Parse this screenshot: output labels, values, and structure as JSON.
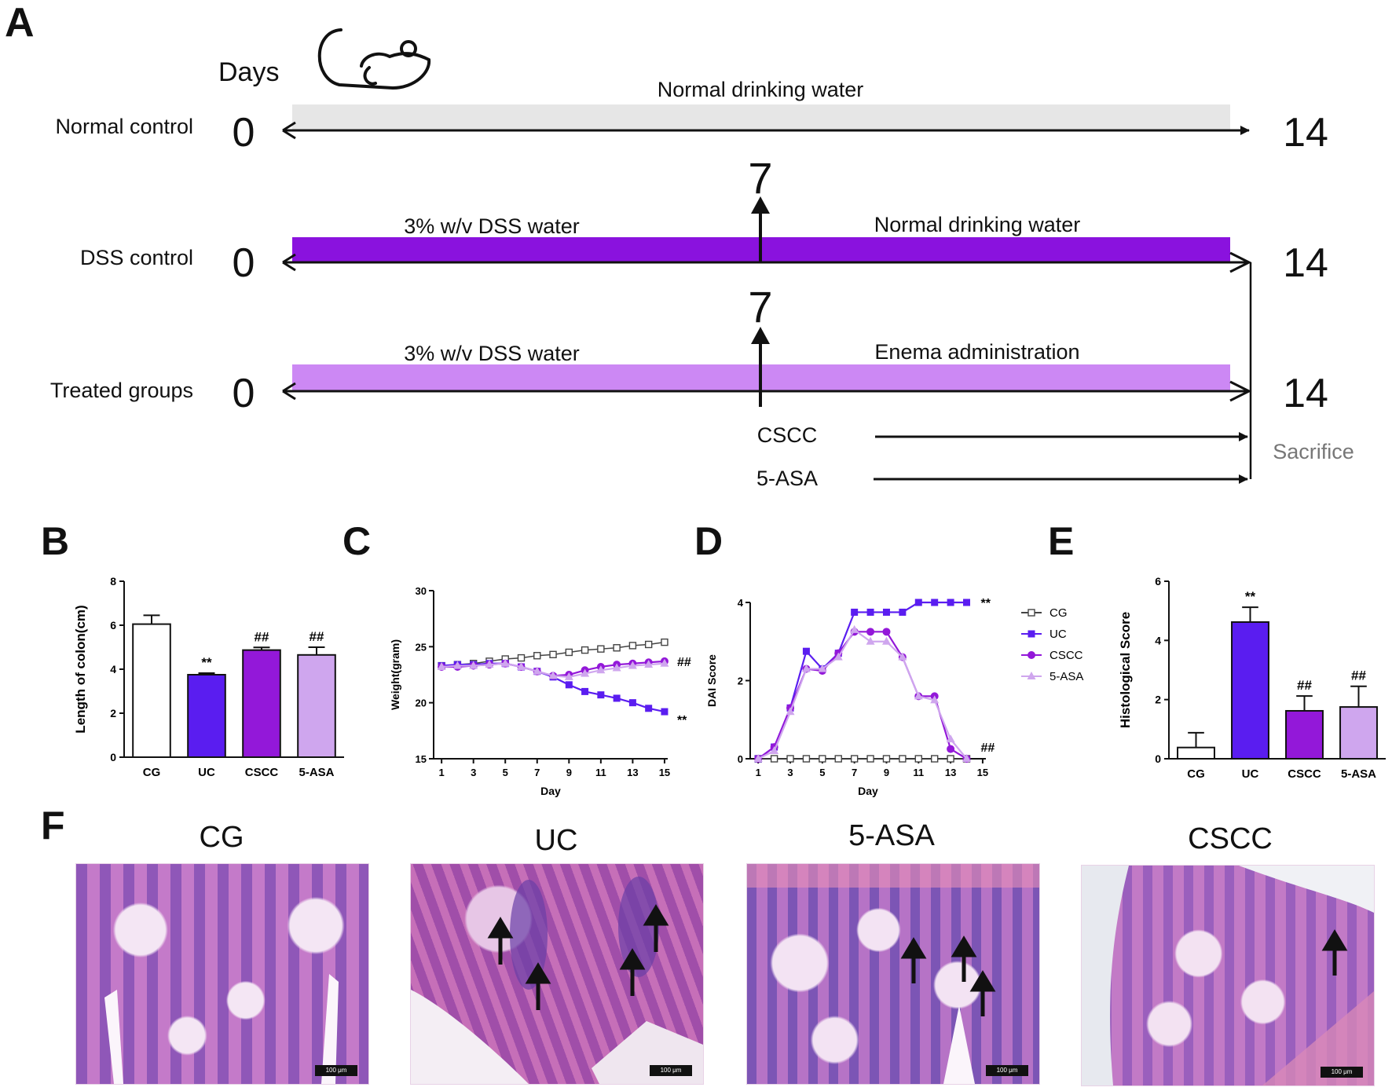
{
  "panel_letters": {
    "a": "A",
    "b": "B",
    "c": "C",
    "d": "D",
    "e": "E",
    "f": "F"
  },
  "colors": {
    "cg": "#444444",
    "uc": "#5a1df0",
    "cscc": "#9318d9",
    "asa": "#cfa6ee",
    "normal_bar": "#e6e6e6",
    "dss_bar": "#8a12de",
    "treated_bar": "#cc88f4",
    "tissue": "#b85fbd"
  },
  "timeline": {
    "days_label": "Days",
    "mouse_icon": "mouse-icon",
    "rows": [
      {
        "label": "Normal control",
        "start_day": "0",
        "end_day": "14",
        "segment_left": "Normal drinking water",
        "segment_right": "",
        "mid_day": ""
      },
      {
        "label": "DSS control",
        "start_day": "0",
        "end_day": "14",
        "segment_left": "3% w/v DSS water",
        "segment_right": "Normal drinking water",
        "mid_day": "7"
      },
      {
        "label": "Treated groups",
        "start_day": "0",
        "end_day": "14",
        "segment_left": "3% w/v DSS water",
        "segment_right": "Enema administration",
        "mid_day": "7"
      }
    ],
    "treatments": [
      "CSCC",
      "5-ASA"
    ],
    "endpoint": "Sacrifice"
  },
  "chart_data": [
    {
      "panel": "B",
      "type": "bar",
      "title": "",
      "xlabel": "",
      "ylabel": "Length of colon(cm)",
      "categories": [
        "CG",
        "UC",
        "CSCC",
        "5-ASA"
      ],
      "values": [
        6.05,
        3.75,
        4.87,
        4.65
      ],
      "errors": [
        0.4,
        0.07,
        0.12,
        0.35
      ],
      "annotations": [
        "",
        "**",
        "##",
        "##"
      ],
      "ylim": [
        0,
        8
      ],
      "yticks": [
        0,
        2,
        4,
        6,
        8
      ]
    },
    {
      "panel": "C",
      "type": "line",
      "title": "",
      "xlabel": "Day",
      "ylabel": "Weight(gram)",
      "x": [
        1,
        2,
        3,
        4,
        5,
        6,
        7,
        8,
        9,
        10,
        11,
        12,
        13,
        14,
        15
      ],
      "xticks": [
        1,
        3,
        5,
        7,
        9,
        11,
        13,
        15
      ],
      "ylim": [
        15,
        30
      ],
      "yticks": [
        15,
        20,
        25,
        30
      ],
      "series": [
        {
          "name": "CG",
          "values": [
            23.3,
            23.4,
            23.5,
            23.7,
            23.9,
            24.0,
            24.2,
            24.3,
            24.5,
            24.7,
            24.8,
            24.9,
            25.1,
            25.2,
            25.4
          ]
        },
        {
          "name": "UC",
          "values": [
            23.3,
            23.4,
            23.4,
            23.5,
            23.5,
            23.2,
            22.8,
            22.3,
            21.6,
            21.0,
            20.7,
            20.4,
            20.0,
            19.5,
            19.2
          ]
        },
        {
          "name": "CSCC",
          "values": [
            23.2,
            23.2,
            23.3,
            23.4,
            23.5,
            23.2,
            22.8,
            22.4,
            22.5,
            22.9,
            23.2,
            23.4,
            23.5,
            23.6,
            23.7
          ]
        },
        {
          "name": "5-ASA",
          "values": [
            23.2,
            23.3,
            23.3,
            23.4,
            23.5,
            23.2,
            22.8,
            22.4,
            22.3,
            22.6,
            22.9,
            23.1,
            23.3,
            23.4,
            23.5
          ]
        }
      ],
      "annotations": [
        {
          "text": "##",
          "series": "CSCC"
        },
        {
          "text": "**",
          "series": "UC"
        }
      ]
    },
    {
      "panel": "D",
      "type": "line",
      "title": "",
      "xlabel": "Day",
      "ylabel": "DAI Score",
      "x": [
        1,
        2,
        3,
        4,
        5,
        6,
        7,
        8,
        9,
        10,
        11,
        12,
        13,
        14
      ],
      "xticks": [
        1,
        3,
        5,
        7,
        9,
        11,
        13,
        15
      ],
      "ylim": [
        0,
        4
      ],
      "yticks": [
        0,
        2,
        4
      ],
      "series": [
        {
          "name": "CG",
          "values": [
            0,
            0,
            0,
            0,
            0,
            0,
            0,
            0,
            0,
            0,
            0,
            0,
            0,
            0
          ]
        },
        {
          "name": "UC",
          "values": [
            0,
            0.3,
            1.3,
            2.75,
            2.3,
            2.7,
            3.75,
            3.75,
            3.75,
            3.75,
            4,
            4,
            4,
            4
          ]
        },
        {
          "name": "CSCC",
          "values": [
            0,
            0.3,
            1.3,
            2.3,
            2.25,
            2.7,
            3.25,
            3.25,
            3.25,
            2.6,
            1.6,
            1.6,
            0.25,
            0
          ]
        },
        {
          "name": "5-ASA",
          "values": [
            0,
            0.2,
            1.2,
            2.3,
            2.3,
            2.6,
            3.3,
            3.0,
            3.0,
            2.6,
            1.6,
            1.5,
            0.5,
            0
          ]
        }
      ],
      "legend": [
        "CG",
        "UC",
        "CSCC",
        "5-ASA"
      ],
      "annotations": [
        {
          "text": "**",
          "series": "UC"
        },
        {
          "text": "##",
          "series": "CSCC"
        }
      ]
    },
    {
      "panel": "E",
      "type": "bar",
      "title": "",
      "xlabel": "",
      "ylabel": "Histological Score",
      "categories": [
        "CG",
        "UC",
        "CSCC",
        "5-ASA"
      ],
      "values": [
        0.38,
        4.62,
        1.62,
        1.75
      ],
      "errors": [
        0.5,
        0.5,
        0.5,
        0.7
      ],
      "annotations": [
        "",
        "**",
        "##",
        "##"
      ],
      "ylim": [
        0,
        6
      ],
      "yticks": [
        0,
        2,
        4,
        6
      ]
    }
  ],
  "histology": {
    "titles": [
      "CG",
      "UC",
      "5-ASA",
      "CSCC"
    ],
    "scale_bar": "100 μm"
  }
}
